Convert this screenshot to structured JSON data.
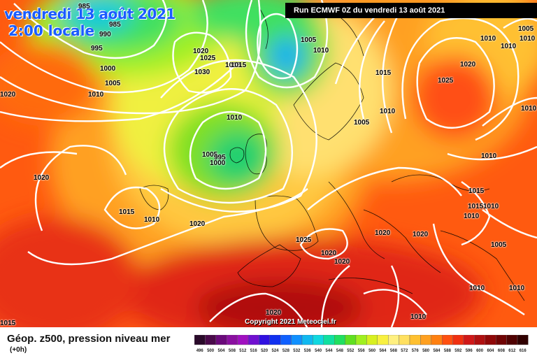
{
  "header": {
    "date": "vendredi 13 août 2021",
    "time": "2:00 locale",
    "run": "Run ECMWF 0Z du vendredi 13 août 2021"
  },
  "footer": {
    "copyright": "Copyright 2021 Meteociel.fr",
    "legend_title": "Géop. z500, pression niveau mer",
    "legend_sub": "(+0h)"
  },
  "scale": {
    "values": [
      "496",
      "500",
      "504",
      "508",
      "512",
      "516",
      "520",
      "524",
      "528",
      "532",
      "536",
      "540",
      "544",
      "548",
      "552",
      "556",
      "560",
      "564",
      "568",
      "572",
      "576",
      "580",
      "584",
      "588",
      "592",
      "596",
      "600",
      "604",
      "608",
      "612",
      "616"
    ],
    "colors": [
      "#2a0a2a",
      "#4a0a4a",
      "#6a0a7a",
      "#8a10a0",
      "#a010c0",
      "#7010d0",
      "#3010e0",
      "#1030f0",
      "#1060ff",
      "#1090ff",
      "#10b8f0",
      "#10d8e0",
      "#10e0a0",
      "#20e060",
      "#60e020",
      "#a0f020",
      "#d8f020",
      "#f8f040",
      "#fff080",
      "#ffe060",
      "#ffc030",
      "#ffa020",
      "#ff8010",
      "#ff5010",
      "#f03010",
      "#d01818",
      "#b01010",
      "#900808",
      "#700404",
      "#500202",
      "#300000"
    ]
  },
  "isobars": [
    {
      "label": "985"
    },
    {
      "label": "990"
    },
    {
      "label": "985"
    },
    {
      "label": "995"
    },
    {
      "label": "1000"
    },
    {
      "label": "1005"
    },
    {
      "label": "1010"
    },
    {
      "label": "1015"
    },
    {
      "label": "1020"
    },
    {
      "label": "1025"
    },
    {
      "label": "1030"
    },
    {
      "label": "1015"
    },
    {
      "label": "1005"
    },
    {
      "label": "1010"
    },
    {
      "label": "1015"
    },
    {
      "label": "1010"
    },
    {
      "label": "1005"
    },
    {
      "label": "1010"
    },
    {
      "label": "1005"
    },
    {
      "label": "995"
    },
    {
      "label": "1000"
    },
    {
      "label": "1020"
    },
    {
      "label": "1015"
    },
    {
      "label": "1010"
    },
    {
      "label": "1020"
    },
    {
      "label": "1025"
    },
    {
      "label": "1020"
    },
    {
      "label": "1020"
    },
    {
      "label": "1020"
    },
    {
      "label": "1020"
    },
    {
      "label": "1010"
    },
    {
      "label": "1010"
    },
    {
      "label": "1005"
    },
    {
      "label": "1010"
    },
    {
      "label": "1020"
    },
    {
      "label": "1025"
    },
    {
      "label": "1010"
    },
    {
      "label": "1010"
    },
    {
      "label": "1015"
    },
    {
      "label": "1015"
    },
    {
      "label": "1010"
    },
    {
      "label": "1010"
    },
    {
      "label": "1005"
    },
    {
      "label": "1010"
    },
    {
      "label": "1010"
    },
    {
      "label": "1020"
    },
    {
      "label": "1010"
    },
    {
      "label": "1015"
    },
    {
      "label": "1020"
    }
  ]
}
